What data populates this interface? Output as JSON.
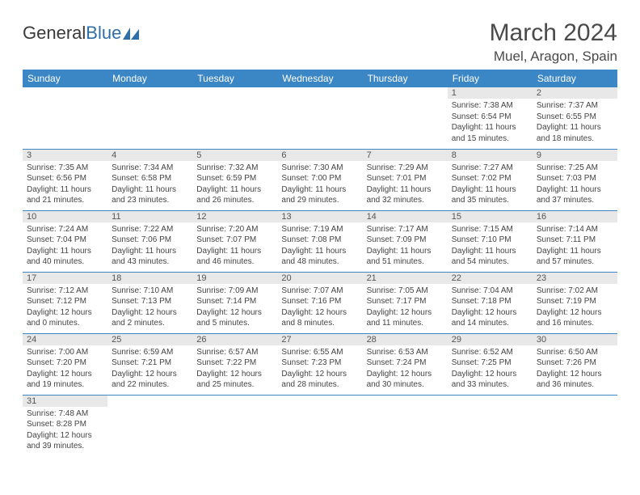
{
  "logo": {
    "text1": "General",
    "text2": "Blue"
  },
  "title": "March 2024",
  "location": "Muel, Aragon, Spain",
  "colors": {
    "header_bg": "#3b86c4",
    "header_text": "#ffffff",
    "daynum_bg": "#e8e8e8",
    "row_border": "#3b86c4",
    "logo_blue": "#2f6fa8",
    "text": "#444444"
  },
  "weekdays": [
    "Sunday",
    "Monday",
    "Tuesday",
    "Wednesday",
    "Thursday",
    "Friday",
    "Saturday"
  ],
  "weeks": [
    [
      {
        "n": "",
        "lines": []
      },
      {
        "n": "",
        "lines": []
      },
      {
        "n": "",
        "lines": []
      },
      {
        "n": "",
        "lines": []
      },
      {
        "n": "",
        "lines": []
      },
      {
        "n": "1",
        "lines": [
          "Sunrise: 7:38 AM",
          "Sunset: 6:54 PM",
          "Daylight: 11 hours",
          "and 15 minutes."
        ]
      },
      {
        "n": "2",
        "lines": [
          "Sunrise: 7:37 AM",
          "Sunset: 6:55 PM",
          "Daylight: 11 hours",
          "and 18 minutes."
        ]
      }
    ],
    [
      {
        "n": "3",
        "lines": [
          "Sunrise: 7:35 AM",
          "Sunset: 6:56 PM",
          "Daylight: 11 hours",
          "and 21 minutes."
        ]
      },
      {
        "n": "4",
        "lines": [
          "Sunrise: 7:34 AM",
          "Sunset: 6:58 PM",
          "Daylight: 11 hours",
          "and 23 minutes."
        ]
      },
      {
        "n": "5",
        "lines": [
          "Sunrise: 7:32 AM",
          "Sunset: 6:59 PM",
          "Daylight: 11 hours",
          "and 26 minutes."
        ]
      },
      {
        "n": "6",
        "lines": [
          "Sunrise: 7:30 AM",
          "Sunset: 7:00 PM",
          "Daylight: 11 hours",
          "and 29 minutes."
        ]
      },
      {
        "n": "7",
        "lines": [
          "Sunrise: 7:29 AM",
          "Sunset: 7:01 PM",
          "Daylight: 11 hours",
          "and 32 minutes."
        ]
      },
      {
        "n": "8",
        "lines": [
          "Sunrise: 7:27 AM",
          "Sunset: 7:02 PM",
          "Daylight: 11 hours",
          "and 35 minutes."
        ]
      },
      {
        "n": "9",
        "lines": [
          "Sunrise: 7:25 AM",
          "Sunset: 7:03 PM",
          "Daylight: 11 hours",
          "and 37 minutes."
        ]
      }
    ],
    [
      {
        "n": "10",
        "lines": [
          "Sunrise: 7:24 AM",
          "Sunset: 7:04 PM",
          "Daylight: 11 hours",
          "and 40 minutes."
        ]
      },
      {
        "n": "11",
        "lines": [
          "Sunrise: 7:22 AM",
          "Sunset: 7:06 PM",
          "Daylight: 11 hours",
          "and 43 minutes."
        ]
      },
      {
        "n": "12",
        "lines": [
          "Sunrise: 7:20 AM",
          "Sunset: 7:07 PM",
          "Daylight: 11 hours",
          "and 46 minutes."
        ]
      },
      {
        "n": "13",
        "lines": [
          "Sunrise: 7:19 AM",
          "Sunset: 7:08 PM",
          "Daylight: 11 hours",
          "and 48 minutes."
        ]
      },
      {
        "n": "14",
        "lines": [
          "Sunrise: 7:17 AM",
          "Sunset: 7:09 PM",
          "Daylight: 11 hours",
          "and 51 minutes."
        ]
      },
      {
        "n": "15",
        "lines": [
          "Sunrise: 7:15 AM",
          "Sunset: 7:10 PM",
          "Daylight: 11 hours",
          "and 54 minutes."
        ]
      },
      {
        "n": "16",
        "lines": [
          "Sunrise: 7:14 AM",
          "Sunset: 7:11 PM",
          "Daylight: 11 hours",
          "and 57 minutes."
        ]
      }
    ],
    [
      {
        "n": "17",
        "lines": [
          "Sunrise: 7:12 AM",
          "Sunset: 7:12 PM",
          "Daylight: 12 hours",
          "and 0 minutes."
        ]
      },
      {
        "n": "18",
        "lines": [
          "Sunrise: 7:10 AM",
          "Sunset: 7:13 PM",
          "Daylight: 12 hours",
          "and 2 minutes."
        ]
      },
      {
        "n": "19",
        "lines": [
          "Sunrise: 7:09 AM",
          "Sunset: 7:14 PM",
          "Daylight: 12 hours",
          "and 5 minutes."
        ]
      },
      {
        "n": "20",
        "lines": [
          "Sunrise: 7:07 AM",
          "Sunset: 7:16 PM",
          "Daylight: 12 hours",
          "and 8 minutes."
        ]
      },
      {
        "n": "21",
        "lines": [
          "Sunrise: 7:05 AM",
          "Sunset: 7:17 PM",
          "Daylight: 12 hours",
          "and 11 minutes."
        ]
      },
      {
        "n": "22",
        "lines": [
          "Sunrise: 7:04 AM",
          "Sunset: 7:18 PM",
          "Daylight: 12 hours",
          "and 14 minutes."
        ]
      },
      {
        "n": "23",
        "lines": [
          "Sunrise: 7:02 AM",
          "Sunset: 7:19 PM",
          "Daylight: 12 hours",
          "and 16 minutes."
        ]
      }
    ],
    [
      {
        "n": "24",
        "lines": [
          "Sunrise: 7:00 AM",
          "Sunset: 7:20 PM",
          "Daylight: 12 hours",
          "and 19 minutes."
        ]
      },
      {
        "n": "25",
        "lines": [
          "Sunrise: 6:59 AM",
          "Sunset: 7:21 PM",
          "Daylight: 12 hours",
          "and 22 minutes."
        ]
      },
      {
        "n": "26",
        "lines": [
          "Sunrise: 6:57 AM",
          "Sunset: 7:22 PM",
          "Daylight: 12 hours",
          "and 25 minutes."
        ]
      },
      {
        "n": "27",
        "lines": [
          "Sunrise: 6:55 AM",
          "Sunset: 7:23 PM",
          "Daylight: 12 hours",
          "and 28 minutes."
        ]
      },
      {
        "n": "28",
        "lines": [
          "Sunrise: 6:53 AM",
          "Sunset: 7:24 PM",
          "Daylight: 12 hours",
          "and 30 minutes."
        ]
      },
      {
        "n": "29",
        "lines": [
          "Sunrise: 6:52 AM",
          "Sunset: 7:25 PM",
          "Daylight: 12 hours",
          "and 33 minutes."
        ]
      },
      {
        "n": "30",
        "lines": [
          "Sunrise: 6:50 AM",
          "Sunset: 7:26 PM",
          "Daylight: 12 hours",
          "and 36 minutes."
        ]
      }
    ],
    [
      {
        "n": "31",
        "lines": [
          "Sunrise: 7:48 AM",
          "Sunset: 8:28 PM",
          "Daylight: 12 hours",
          "and 39 minutes."
        ]
      },
      {
        "n": "",
        "lines": []
      },
      {
        "n": "",
        "lines": []
      },
      {
        "n": "",
        "lines": []
      },
      {
        "n": "",
        "lines": []
      },
      {
        "n": "",
        "lines": []
      },
      {
        "n": "",
        "lines": []
      }
    ]
  ]
}
